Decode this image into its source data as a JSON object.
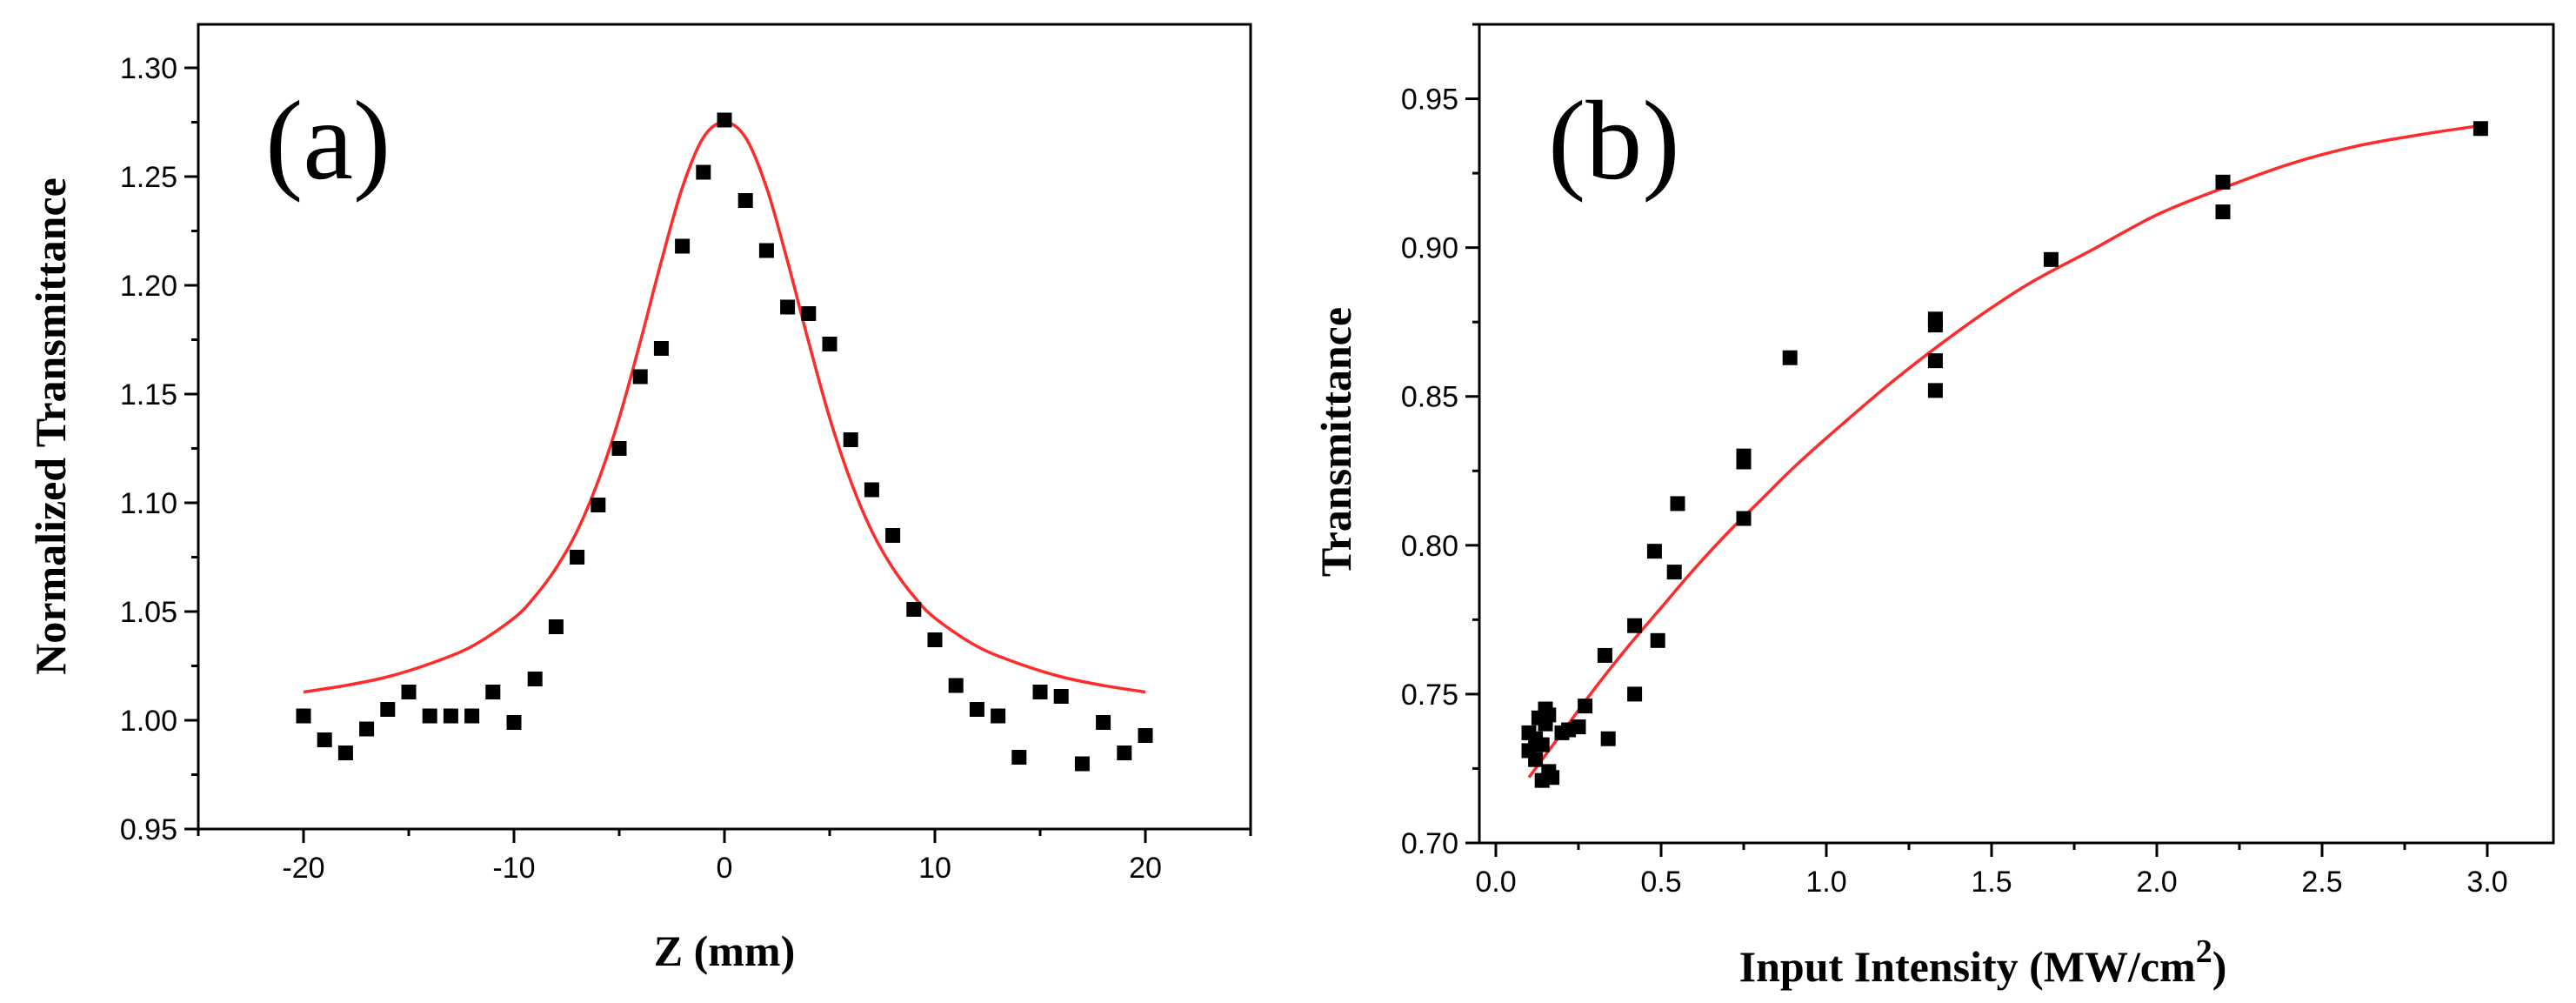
{
  "chart_data": [
    {
      "type": "scatter",
      "panel_label": "(a)",
      "xlabel": "Z (mm)",
      "ylabel": "Normalized Transmittance",
      "xlim": [
        -25,
        25
      ],
      "ylim": [
        0.95,
        1.32
      ],
      "xticks": [
        -20,
        -10,
        0,
        10,
        20
      ],
      "xtick_labels": [
        "-20",
        "-10",
        "0",
        "10",
        "20"
      ],
      "yticks": [
        0.95,
        1.0,
        1.05,
        1.1,
        1.15,
        1.2,
        1.25,
        1.3
      ],
      "ytick_labels": [
        "0.95",
        "1.00",
        "1.05",
        "1.10",
        "1.15",
        "1.20",
        "1.25",
        "1.30"
      ],
      "grid": false,
      "series": [
        {
          "name": "data",
          "style": "black squares",
          "x": [
            -20,
            -19,
            -18,
            -17,
            -16,
            -15,
            -14,
            -13,
            -12,
            -11,
            -10,
            -9,
            -8,
            -7,
            -6,
            -5,
            -4,
            -3,
            -2,
            -1,
            0,
            1,
            2,
            3,
            4,
            5,
            6,
            7,
            8,
            9,
            10,
            11,
            12,
            13,
            14,
            15,
            16,
            17,
            18,
            19,
            20
          ],
          "y": [
            1.002,
            0.991,
            0.985,
            0.996,
            1.005,
            1.013,
            1.002,
            1.002,
            1.002,
            1.013,
            0.999,
            1.019,
            1.043,
            1.075,
            1.099,
            1.125,
            1.158,
            1.171,
            1.218,
            1.252,
            1.276,
            1.239,
            1.216,
            1.19,
            1.187,
            1.173,
            1.129,
            1.106,
            1.085,
            1.051,
            1.037,
            1.016,
            1.005,
            1.002,
            0.983,
            1.013,
            1.011,
            0.98,
            0.999,
            0.985,
            0.993
          ]
        },
        {
          "name": "fit",
          "style": "red line",
          "x": [
            -20,
            -18,
            -16,
            -14,
            -12,
            -10,
            -9,
            -8,
            -7,
            -6,
            -5,
            -4,
            -3,
            -2,
            -1,
            0,
            1,
            2,
            3,
            4,
            5,
            6,
            7,
            8,
            9,
            10,
            12,
            14,
            16,
            18,
            20
          ],
          "y": [
            1.013,
            1.016,
            1.02,
            1.026,
            1.034,
            1.047,
            1.057,
            1.07,
            1.087,
            1.11,
            1.139,
            1.174,
            1.211,
            1.245,
            1.268,
            1.275,
            1.268,
            1.245,
            1.211,
            1.174,
            1.139,
            1.11,
            1.087,
            1.07,
            1.057,
            1.047,
            1.034,
            1.026,
            1.02,
            1.016,
            1.013
          ]
        }
      ]
    },
    {
      "type": "scatter",
      "panel_label": "(b)",
      "xlabel": "Input Intensity (MW/cm",
      "xlabel_superscript": "2",
      "xlabel_suffix": ")",
      "ylabel": "Transmittance",
      "xlim": [
        -0.05,
        3.2
      ],
      "ylim": [
        0.7,
        0.975
      ],
      "xticks": [
        0.0,
        0.5,
        1.0,
        1.5,
        2.0,
        2.5,
        3.0
      ],
      "xtick_labels": [
        "0.0",
        "0.5",
        "1.0",
        "1.5",
        "2.0",
        "2.5",
        "3.0"
      ],
      "yticks": [
        0.7,
        0.75,
        0.8,
        0.85,
        0.9,
        0.95
      ],
      "ytick_labels": [
        "0.70",
        "0.75",
        "0.80",
        "0.85",
        "0.90",
        "0.95"
      ],
      "grid": false,
      "series": [
        {
          "name": "data",
          "style": "black squares",
          "x": [
            0.1,
            0.1,
            0.12,
            0.12,
            0.13,
            0.14,
            0.14,
            0.15,
            0.15,
            0.16,
            0.16,
            0.17,
            0.2,
            0.22,
            0.25,
            0.27,
            0.33,
            0.34,
            0.42,
            0.42,
            0.48,
            0.49,
            0.54,
            0.55,
            0.75,
            0.75,
            0.75,
            0.89,
            1.33,
            1.33,
            1.33,
            1.33,
            1.68,
            2.2,
            2.2,
            2.98
          ],
          "y": [
            0.737,
            0.731,
            0.728,
            0.735,
            0.742,
            0.721,
            0.733,
            0.745,
            0.74,
            0.724,
            0.743,
            0.722,
            0.737,
            0.738,
            0.739,
            0.746,
            0.763,
            0.735,
            0.773,
            0.75,
            0.798,
            0.768,
            0.791,
            0.814,
            0.828,
            0.83,
            0.809,
            0.863,
            0.876,
            0.874,
            0.862,
            0.852,
            0.896,
            0.922,
            0.912,
            0.94
          ]
        },
        {
          "name": "fit",
          "style": "red line",
          "x": [
            0.1,
            0.2,
            0.3,
            0.4,
            0.5,
            0.6,
            0.7,
            0.8,
            0.9,
            1.0,
            1.2,
            1.4,
            1.6,
            1.8,
            2.0,
            2.2,
            2.4,
            2.6,
            2.8,
            2.98
          ],
          "y": [
            0.722,
            0.737,
            0.752,
            0.766,
            0.779,
            0.792,
            0.804,
            0.815,
            0.826,
            0.836,
            0.855,
            0.872,
            0.887,
            0.899,
            0.911,
            0.92,
            0.928,
            0.934,
            0.938,
            0.941
          ]
        }
      ]
    }
  ]
}
